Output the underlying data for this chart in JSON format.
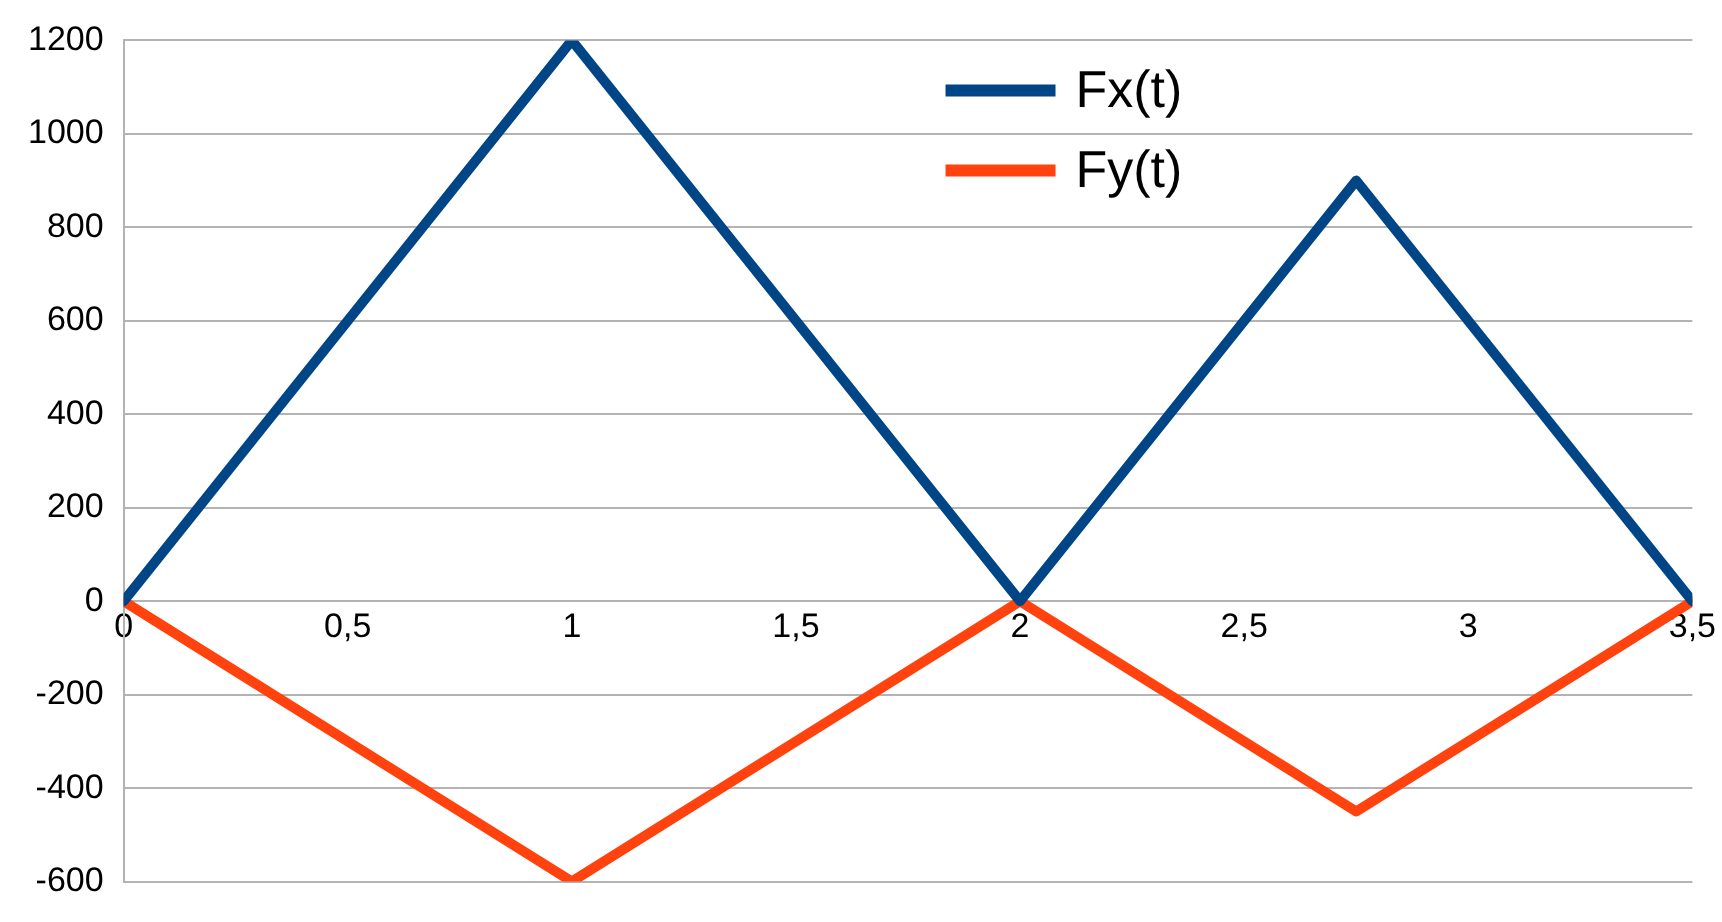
{
  "chart_data": {
    "type": "line",
    "series": [
      {
        "name": "Fx(t)",
        "color": "#004586",
        "x": [
          0,
          1,
          2,
          2.75,
          3.5
        ],
        "values": [
          0,
          1200,
          0,
          900,
          0
        ]
      },
      {
        "name": "Fy(t)",
        "color": "#ff420e",
        "x": [
          0,
          1,
          2,
          2.75,
          3.5
        ],
        "values": [
          0,
          -600,
          0,
          -450,
          0
        ]
      }
    ],
    "xlim": [
      0,
      3.5
    ],
    "xticks": [
      0,
      {
        "value": 0.5,
        "label": "0,5"
      },
      1,
      {
        "value": 1.5,
        "label": "1,5"
      },
      2,
      {
        "value": 2.5,
        "label": "2,5"
      },
      3,
      {
        "value": 3.5,
        "label": "3,5"
      }
    ],
    "ylim": [
      -600,
      1200
    ],
    "yticks": [
      -600,
      -400,
      -200,
      0,
      200,
      400,
      600,
      800,
      1000,
      1200
    ],
    "grid": "y",
    "legend": "top right",
    "marker": "none",
    "line_style": "solid"
  }
}
